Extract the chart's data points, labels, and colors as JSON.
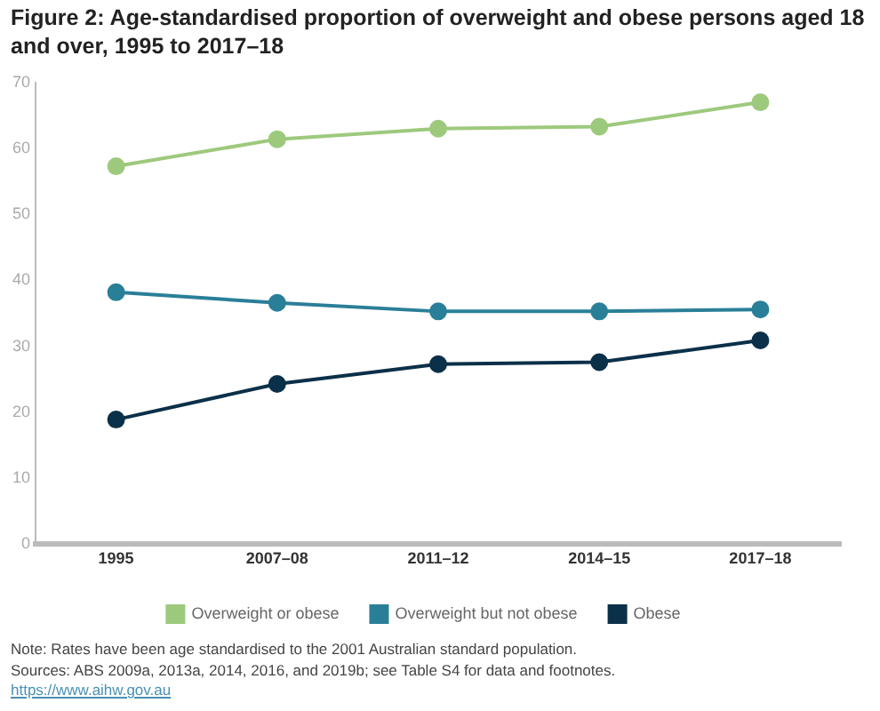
{
  "chart_data": {
    "type": "line",
    "title": "Figure 2: Age-standardised proportion of overweight and obese persons aged 18 and over, 1995 to 2017–18",
    "categories": [
      "1995",
      "2007–08",
      "2011–12",
      "2014–15",
      "2017–18"
    ],
    "ylim": [
      0,
      70
    ],
    "yticks": [
      0,
      10,
      20,
      30,
      40,
      50,
      60,
      70
    ],
    "series": [
      {
        "name": "Overweight or obese",
        "color": "#9dc97c",
        "values": [
          57.3,
          61.4,
          63.0,
          63.3,
          67.0
        ]
      },
      {
        "name": "Overweight but not obese",
        "color": "#2a7f98",
        "values": [
          38.2,
          36.6,
          35.3,
          35.3,
          35.6
        ]
      },
      {
        "name": "Obese",
        "color": "#0b3049",
        "values": [
          18.9,
          24.3,
          27.3,
          27.6,
          30.9
        ]
      }
    ],
    "grid": false,
    "legend": "bottom",
    "marker": "circle",
    "line_style": "solid",
    "annotations": [
      "Note: Rates have been age standardised to the 2001 Australian standard population.",
      "Sources: ABS 2009a, 2013a, 2014, 2016, and 2019b; see Table S4 for data and footnotes.",
      "https://www.aihw.gov.au"
    ]
  }
}
